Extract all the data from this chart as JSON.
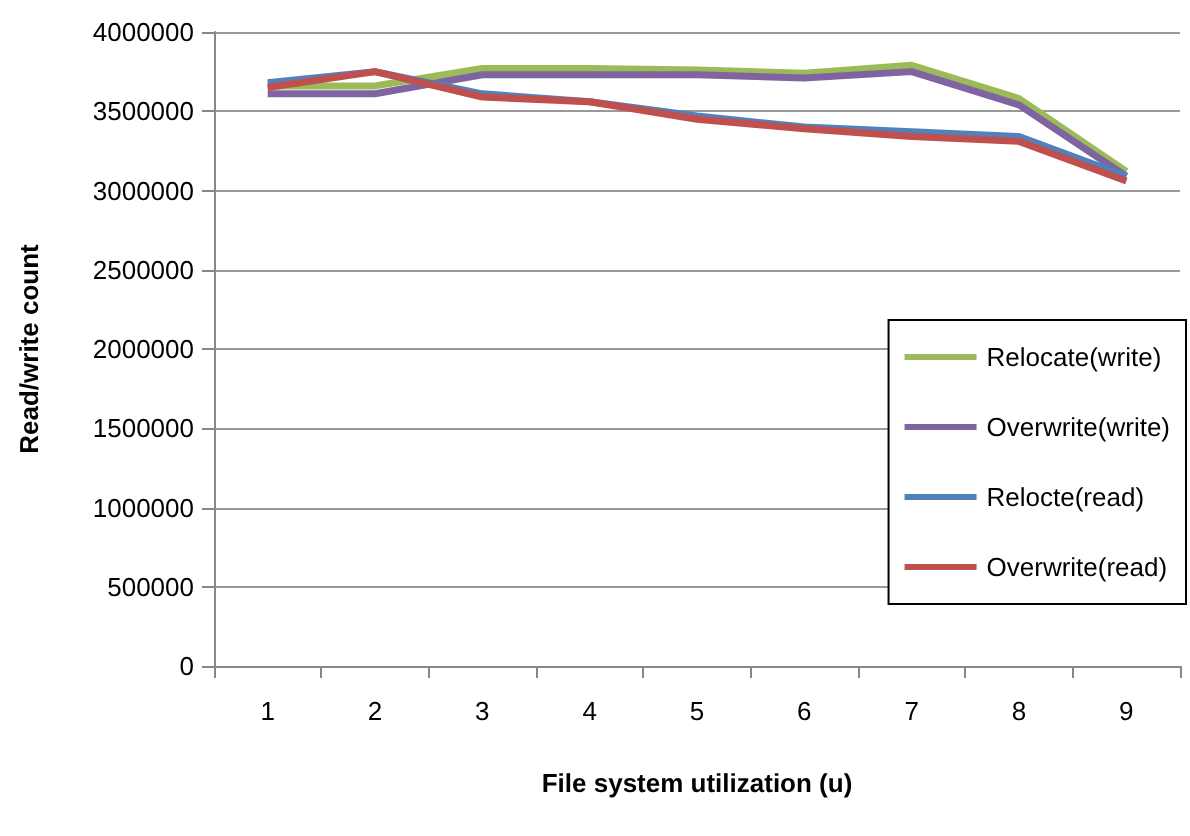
{
  "chart_data": {
    "type": "line",
    "xlabel": "File system utilization (u)",
    "ylabel": "Read/write count",
    "categories": [
      "1",
      "2",
      "3",
      "4",
      "5",
      "6",
      "7",
      "8",
      "9"
    ],
    "series": [
      {
        "name": "Relocate(write)",
        "color": "#9bbb59",
        "values": [
          3660000,
          3660000,
          3770000,
          3770000,
          3760000,
          3740000,
          3790000,
          3580000,
          3120000
        ]
      },
      {
        "name": "Overwrite(write)",
        "color": "#8064a2",
        "values": [
          3610000,
          3610000,
          3730000,
          3730000,
          3730000,
          3710000,
          3750000,
          3540000,
          3090000
        ]
      },
      {
        "name": "Relocte(read)",
        "color": "#4f81bd",
        "values": [
          3680000,
          3750000,
          3610000,
          3560000,
          3470000,
          3400000,
          3370000,
          3340000,
          3090000
        ]
      },
      {
        "name": "Overwrite(read)",
        "color": "#c0504d",
        "values": [
          3650000,
          3750000,
          3590000,
          3560000,
          3450000,
          3390000,
          3340000,
          3310000,
          3060000
        ]
      }
    ],
    "ylim": [
      0,
      4000000
    ],
    "yticks": [
      0,
      500000,
      1000000,
      1500000,
      2000000,
      2500000,
      3000000,
      3500000,
      4000000
    ],
    "grid": "y",
    "legend": "right",
    "marker": "none",
    "line_style": "solid"
  }
}
